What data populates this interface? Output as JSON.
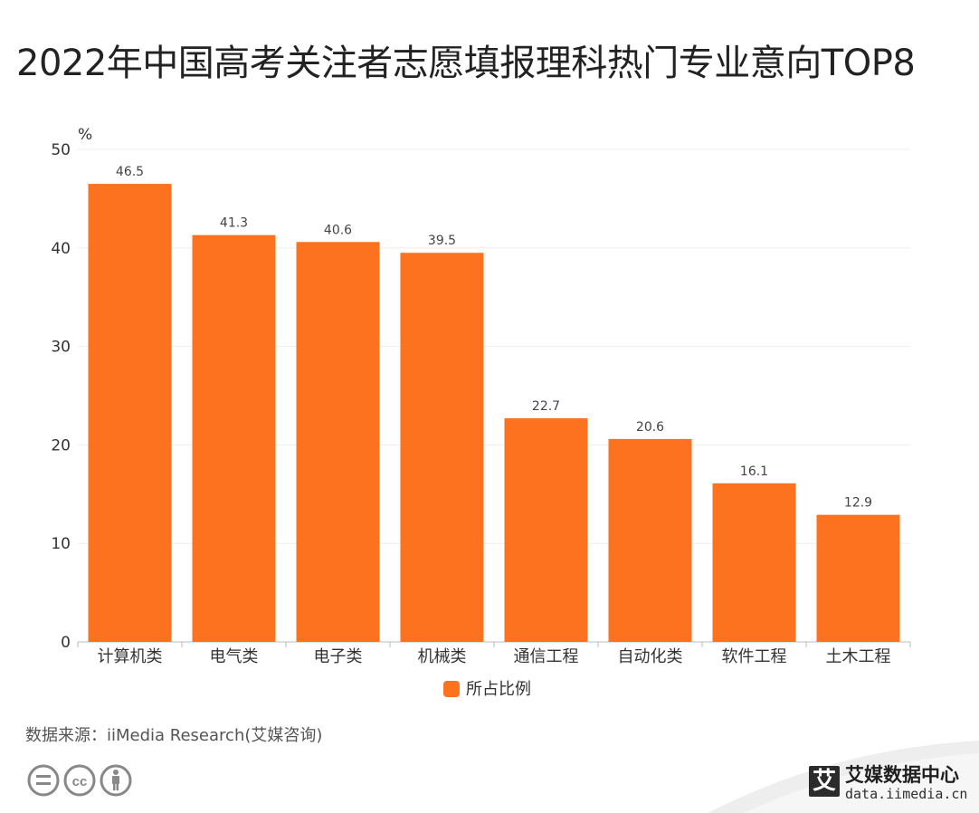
{
  "title": "2022年中国高考关注者志愿填报理科热门专业意向TOP8",
  "source": "数据来源：iiMedia Research(艾媒咨询)",
  "brand": {
    "logo_glyph": "艾",
    "name": "艾媒数据中心",
    "url": "data.iimedia.cn"
  },
  "license_icons": [
    "equals-icon",
    "cc-icon",
    "person-icon"
  ],
  "chart_data": {
    "type": "bar",
    "title": "2022年中国高考关注者志愿填报理科热门专业意向TOP8",
    "ylabel": "%",
    "xlabel": "",
    "ylim": [
      0,
      50
    ],
    "yticks": [
      0,
      10,
      20,
      30,
      40,
      50
    ],
    "grid": true,
    "legend_position": "bottom-center",
    "color": "#fc721f",
    "categories": [
      "计算机类",
      "电气类",
      "电子类",
      "机械类",
      "通信工程",
      "自动化类",
      "软件工程",
      "土木工程"
    ],
    "series": [
      {
        "name": "所占比例",
        "values": [
          46.5,
          41.3,
          40.6,
          39.5,
          22.7,
          20.6,
          16.1,
          12.9
        ]
      }
    ]
  }
}
